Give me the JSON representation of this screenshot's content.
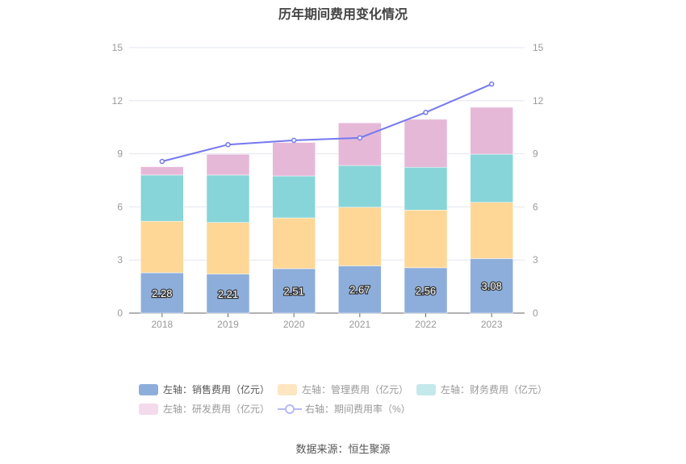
{
  "chart_data": {
    "type": "bar",
    "title": "历年期间费用变化情况",
    "categories": [
      "2018",
      "2019",
      "2020",
      "2021",
      "2022",
      "2023"
    ],
    "left_axis": {
      "ylim": [
        0,
        15
      ],
      "ticks": [
        "0",
        "3",
        "6",
        "9",
        "12",
        "15"
      ]
    },
    "right_axis": {
      "ylim": [
        0,
        15
      ],
      "ticks": [
        "0",
        "3",
        "6",
        "9",
        "12",
        "15"
      ]
    },
    "series": [
      {
        "name": "左轴：销售费用（亿元）",
        "color": "#8daedb",
        "values": [
          2.28,
          2.21,
          2.51,
          2.67,
          2.56,
          3.08
        ],
        "labels": [
          "2.28",
          "2.21",
          "2.51",
          "2.67",
          "2.56",
          "3.08"
        ]
      },
      {
        "name": "左轴：管理费用（亿元）",
        "color": "#fed797",
        "values": [
          2.91,
          2.91,
          2.87,
          3.31,
          3.26,
          3.18
        ]
      },
      {
        "name": "左轴：财务费用（亿元）",
        "color": "#87d5d8",
        "values": [
          2.61,
          2.68,
          2.37,
          2.36,
          2.42,
          2.72
        ]
      },
      {
        "name": "左轴：研发费用（亿元）",
        "color": "#e6b8d8",
        "values": [
          0.47,
          1.17,
          1.89,
          2.41,
          2.71,
          2.65
        ]
      }
    ],
    "line": {
      "name": "右轴：期间费用率（%）",
      "color": "#7479f0",
      "values": [
        8.57,
        9.52,
        9.76,
        9.9,
        11.34,
        12.94
      ]
    },
    "legend_swatches": [
      "#8daedb",
      "#ffe6c2",
      "#c3e9eb",
      "#f3dbec",
      "#b6b9f8"
    ]
  },
  "source": "数据来源：恒生聚源"
}
